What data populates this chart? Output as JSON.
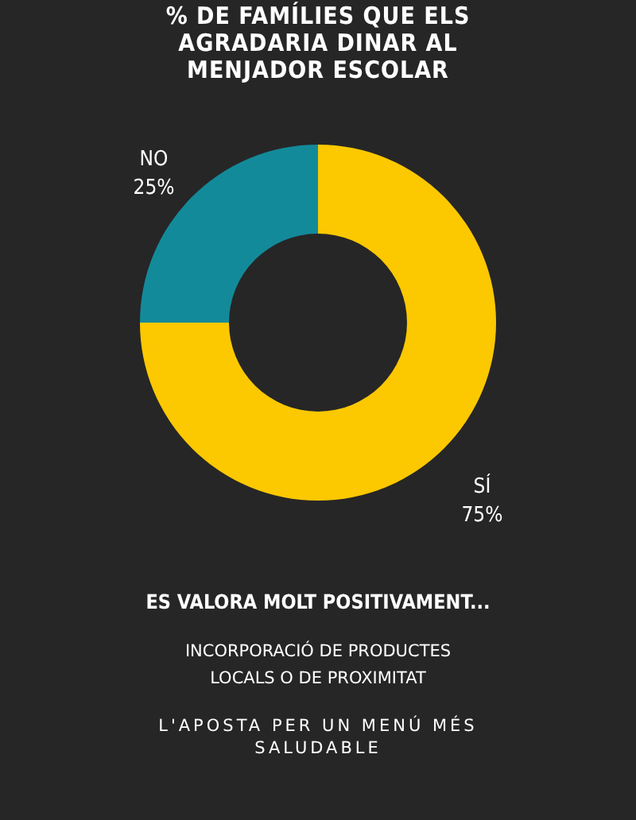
{
  "chart_data": {
    "type": "donut",
    "title": "% DE FAMÍLIES QUE ELS AGRADARIA DINAR AL MENJADOR ESCOLAR",
    "categories": [
      "SÍ",
      "NO"
    ],
    "values": [
      75,
      25
    ],
    "colors": [
      "#fcc800",
      "#138a9a"
    ],
    "value_labels": [
      "75%",
      "25%"
    ],
    "annotations": [
      "ES VALORA MOLT POSITIVAMENT...",
      "INCORPORACIÓ DE PRODUCTES LOCALS O DE PROXIMITAT",
      "L'APOSTA PER UN MENÚ MÉS SALUDABLE"
    ]
  }
}
